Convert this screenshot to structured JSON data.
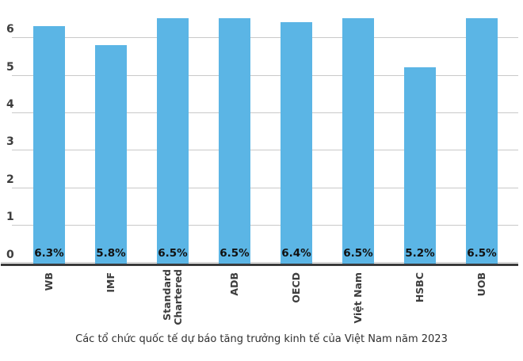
{
  "chart_data": {
    "type": "bar",
    "categories": [
      "WB",
      "IMF",
      "Standard\nChartered",
      "ADB",
      "OECD",
      "Việt Nam",
      "HSBC",
      "UOB"
    ],
    "values": [
      6.3,
      5.8,
      6.5,
      6.5,
      6.4,
      6.5,
      5.2,
      6.5
    ],
    "bar_labels": [
      "6.3%",
      "5.8%",
      "6.5%",
      "6.5%",
      "6.4%",
      "6.5%",
      "5.2%",
      "6.5%"
    ],
    "title": "Các tổ chức quốc tế dự báo tăng trưởng kinh tế của Việt Nam năm 2023",
    "xlabel": "",
    "ylabel": "",
    "ylim": [
      0,
      7
    ],
    "yticks": [
      0,
      1,
      2,
      3,
      4,
      5,
      6
    ],
    "grid": true,
    "legend": false,
    "value_labels_position": "inside-bottom",
    "category_labels_rotation": -90,
    "colors": {
      "bar": "#5BB5E5",
      "gridline": "#c9c9c9",
      "axis": "#3a3a3a",
      "tick_label": "#3d3d3d",
      "value_label": "#111111",
      "category_label": "#3d3d3d",
      "title": "#2f2f2f",
      "background": "#ffffff"
    }
  }
}
